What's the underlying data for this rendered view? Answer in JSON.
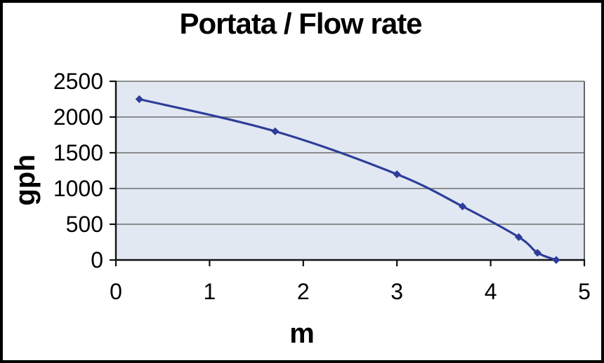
{
  "chart_data": {
    "type": "line",
    "title": "Portata / Flow rate",
    "xlabel": "m",
    "ylabel": "gph",
    "x": [
      0.25,
      1.7,
      3.0,
      3.7,
      4.3,
      4.5,
      4.7
    ],
    "y": [
      2250,
      1800,
      1200,
      750,
      320,
      100,
      0
    ],
    "xlim": [
      0,
      5
    ],
    "ylim": [
      0,
      2500
    ],
    "x_ticks": [
      0,
      1,
      2,
      3,
      4,
      5
    ],
    "y_ticks": [
      0,
      500,
      1000,
      1500,
      2000,
      2500
    ],
    "grid": "horizontal",
    "legend": "none",
    "marker": "diamond",
    "line_smooth": true,
    "colors": {
      "line": "#2e3d99",
      "plot_background": "#e1e8f2",
      "gridline": "#7f7f7f",
      "plot_border": "#555555",
      "axis": "#111111",
      "text": "#000000",
      "page_background": "#ffffff",
      "frame_border": "#000000"
    }
  }
}
